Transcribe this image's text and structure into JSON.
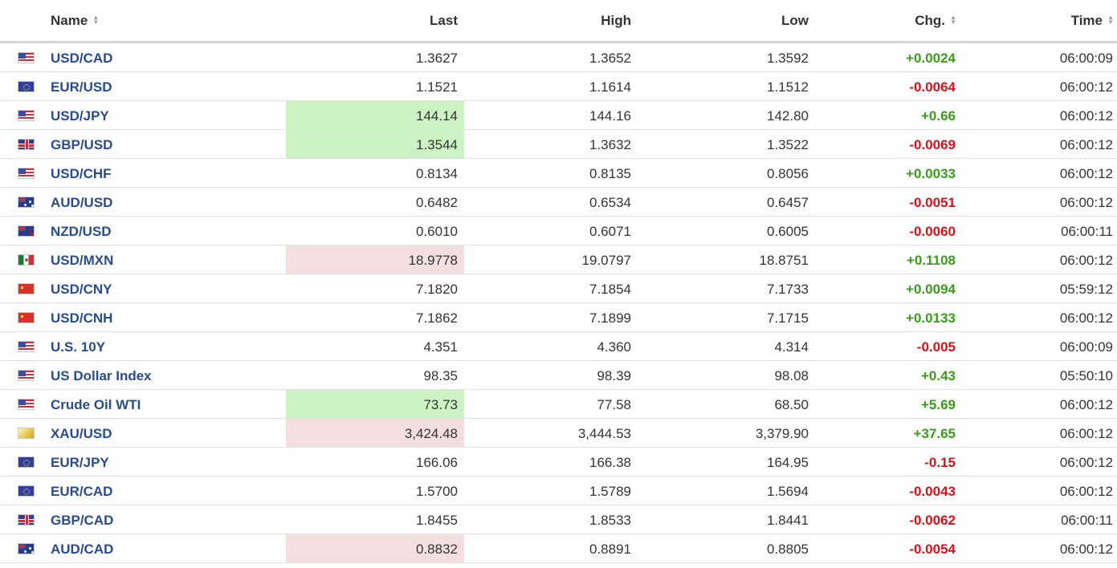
{
  "colors": {
    "up": "#3c9a1c",
    "down": "#d4121b",
    "name": "#2a4b8d",
    "highlight_up": "#cdf3c4",
    "highlight_down": "#f3dfdf"
  },
  "columns": {
    "name": "Name",
    "last": "Last",
    "high": "High",
    "low": "Low",
    "chg": "Chg.",
    "time": "Time"
  },
  "rows": [
    {
      "flag": "us-flag-icon",
      "name": "USD/CAD",
      "last": "1.3627",
      "high": "1.3652",
      "low": "1.3592",
      "chg": "+0.0024",
      "dir": "up",
      "time": "06:00:09",
      "highlight": ""
    },
    {
      "flag": "eu-flag-icon",
      "name": "EUR/USD",
      "last": "1.1521",
      "high": "1.1614",
      "low": "1.1512",
      "chg": "-0.0064",
      "dir": "down",
      "time": "06:00:12",
      "highlight": ""
    },
    {
      "flag": "us-flag-icon",
      "name": "USD/JPY",
      "last": "144.14",
      "high": "144.16",
      "low": "142.80",
      "chg": "+0.66",
      "dir": "up",
      "time": "06:00:12",
      "highlight": "up"
    },
    {
      "flag": "gb-flag-icon",
      "name": "GBP/USD",
      "last": "1.3544",
      "high": "1.3632",
      "low": "1.3522",
      "chg": "-0.0069",
      "dir": "down",
      "time": "06:00:12",
      "highlight": "up"
    },
    {
      "flag": "us-flag-icon",
      "name": "USD/CHF",
      "last": "0.8134",
      "high": "0.8135",
      "low": "0.8056",
      "chg": "+0.0033",
      "dir": "up",
      "time": "06:00:12",
      "highlight": ""
    },
    {
      "flag": "au-flag-icon",
      "name": "AUD/USD",
      "last": "0.6482",
      "high": "0.6534",
      "low": "0.6457",
      "chg": "-0.0051",
      "dir": "down",
      "time": "06:00:12",
      "highlight": ""
    },
    {
      "flag": "nz-flag-icon",
      "name": "NZD/USD",
      "last": "0.6010",
      "high": "0.6071",
      "low": "0.6005",
      "chg": "-0.0060",
      "dir": "down",
      "time": "06:00:11",
      "highlight": ""
    },
    {
      "flag": "mx-flag-icon",
      "name": "USD/MXN",
      "last": "18.9778",
      "high": "19.0797",
      "low": "18.8751",
      "chg": "+0.1108",
      "dir": "up",
      "time": "06:00:12",
      "highlight": "down"
    },
    {
      "flag": "cn-flag-icon",
      "name": "USD/CNY",
      "last": "7.1820",
      "high": "7.1854",
      "low": "7.1733",
      "chg": "+0.0094",
      "dir": "up",
      "time": "05:59:12",
      "highlight": ""
    },
    {
      "flag": "cn-flag-icon",
      "name": "USD/CNH",
      "last": "7.1862",
      "high": "7.1899",
      "low": "7.1715",
      "chg": "+0.0133",
      "dir": "up",
      "time": "06:00:12",
      "highlight": ""
    },
    {
      "flag": "us-flag-icon",
      "name": "U.S. 10Y",
      "last": "4.351",
      "high": "4.360",
      "low": "4.314",
      "chg": "-0.005",
      "dir": "down",
      "time": "06:00:09",
      "highlight": ""
    },
    {
      "flag": "us-flag-icon",
      "name": "US Dollar Index",
      "last": "98.35",
      "high": "98.39",
      "low": "98.08",
      "chg": "+0.43",
      "dir": "up",
      "time": "05:50:10",
      "highlight": ""
    },
    {
      "flag": "us-flag-icon",
      "name": "Crude Oil WTI",
      "last": "73.73",
      "high": "77.58",
      "low": "68.50",
      "chg": "+5.69",
      "dir": "up",
      "time": "06:00:12",
      "highlight": "up"
    },
    {
      "flag": "xau-flag-icon",
      "name": "XAU/USD",
      "last": "3,424.48",
      "high": "3,444.53",
      "low": "3,379.90",
      "chg": "+37.65",
      "dir": "up",
      "time": "06:00:12",
      "highlight": "down"
    },
    {
      "flag": "eu-flag-icon",
      "name": "EUR/JPY",
      "last": "166.06",
      "high": "166.38",
      "low": "164.95",
      "chg": "-0.15",
      "dir": "down",
      "time": "06:00:12",
      "highlight": ""
    },
    {
      "flag": "eu-flag-icon",
      "name": "EUR/CAD",
      "last": "1.5700",
      "high": "1.5789",
      "low": "1.5694",
      "chg": "-0.0043",
      "dir": "down",
      "time": "06:00:12",
      "highlight": ""
    },
    {
      "flag": "gb-flag-icon",
      "name": "GBP/CAD",
      "last": "1.8455",
      "high": "1.8533",
      "low": "1.8441",
      "chg": "-0.0062",
      "dir": "down",
      "time": "06:00:11",
      "highlight": ""
    },
    {
      "flag": "au-flag-icon",
      "name": "AUD/CAD",
      "last": "0.8832",
      "high": "0.8891",
      "low": "0.8805",
      "chg": "-0.0054",
      "dir": "down",
      "time": "06:00:12",
      "highlight": "down"
    }
  ]
}
